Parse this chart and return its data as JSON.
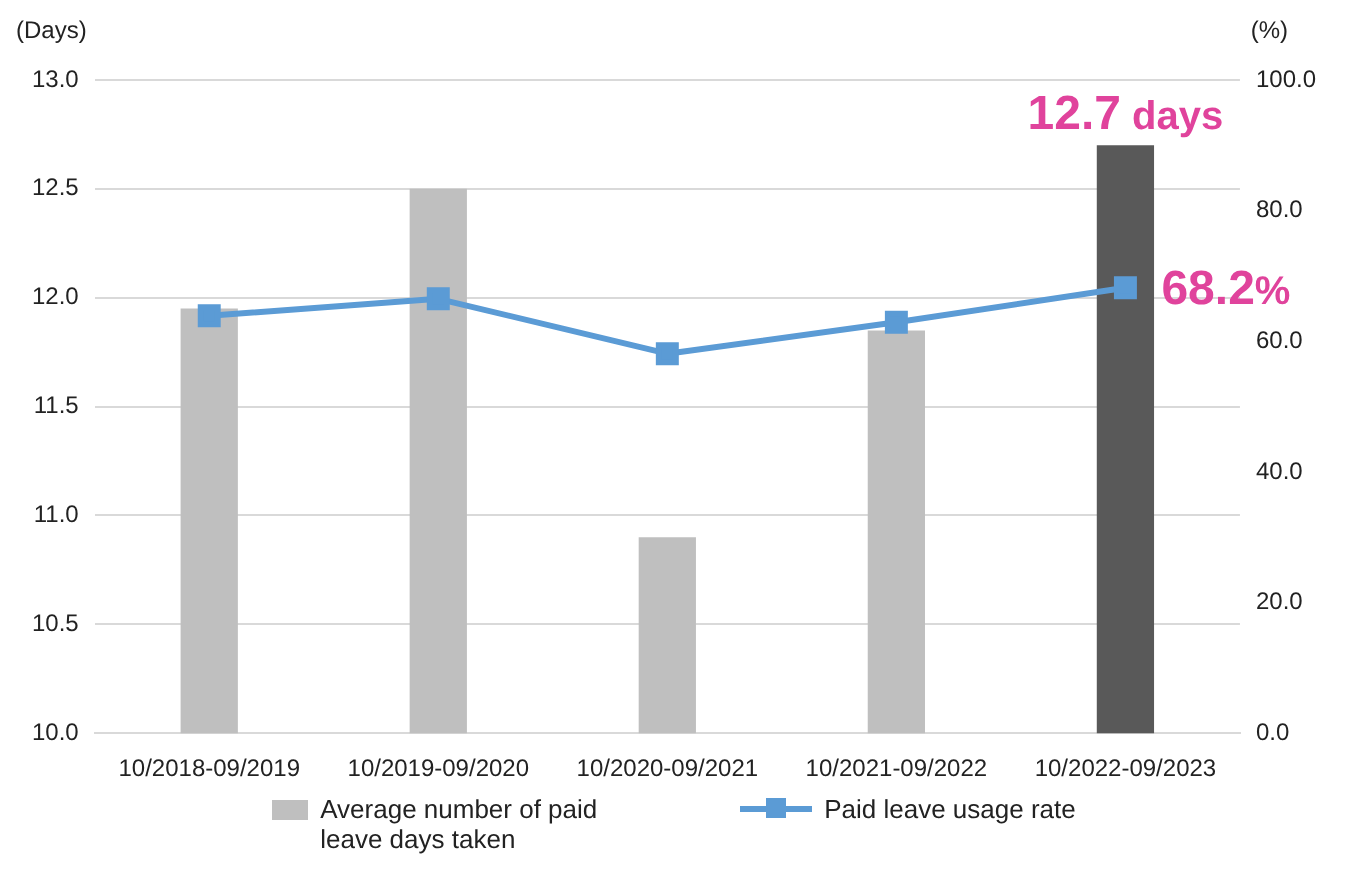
{
  "chart_data": {
    "type": "bar",
    "ylabel": "(Days)",
    "y2label": "(%)",
    "categories": [
      "10/2018-09/2019",
      "10/2019-09/2020",
      "10/2020-09/2021",
      "10/2021-09/2022",
      "10/2022-09/2023"
    ],
    "series": [
      {
        "name": "Average number of paid leave days taken",
        "color": "#bfbfbf",
        "colors": [
          "#bfbfbf",
          "#bfbfbf",
          "#bfbfbf",
          "#bfbfbf",
          "#595959"
        ],
        "values": [
          11.95,
          12.5,
          10.9,
          11.85,
          12.7
        ],
        "value_labels": [
          null,
          null,
          null,
          null,
          "12.7 days"
        ]
      },
      {
        "name": "Paid leave usage rate",
        "type": "line",
        "axis": "y2",
        "color": "#5b9bd5",
        "marker": "square",
        "values": [
          63.9,
          66.5,
          58.1,
          62.9,
          68.2
        ],
        "value_labels": [
          null,
          null,
          null,
          null,
          "68.2%"
        ]
      }
    ],
    "ylim": [
      10,
      13
    ],
    "yticks": [
      {
        "value": 10,
        "label": "10.0"
      },
      {
        "value": 10.5,
        "label": "10.5"
      },
      {
        "value": 11,
        "label": "11.0"
      },
      {
        "value": 11.5,
        "label": "11.5"
      },
      {
        "value": 12,
        "label": "12.0"
      },
      {
        "value": 12.5,
        "label": "12.5"
      },
      {
        "value": 13,
        "label": "13.0"
      }
    ],
    "y2lim": [
      0,
      100
    ],
    "y2ticks": [
      {
        "value": 0,
        "label": "0.0"
      },
      {
        "value": 20,
        "label": "20.0"
      },
      {
        "value": 40,
        "label": "40.0"
      },
      {
        "value": 60,
        "label": "60.0"
      },
      {
        "value": 80,
        "label": "80.0"
      },
      {
        "value": 100,
        "label": "100.0"
      }
    ],
    "grid": "y",
    "legend": "bottom"
  }
}
